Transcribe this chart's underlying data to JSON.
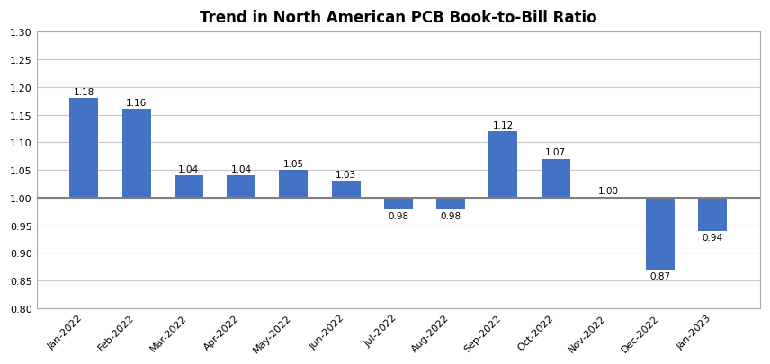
{
  "title": "Trend in North American PCB Book-to-Bill Ratio",
  "categories": [
    "Jan-2022",
    "Feb-2022",
    "Mar-2022",
    "Apr-2022",
    "May-2022",
    "Jun-2022",
    "Jul-2022",
    "Aug-2022",
    "Sep-2022",
    "Oct-2022",
    "Nov-2022",
    "Dec-2022",
    "Jan-2023"
  ],
  "values": [
    1.18,
    1.16,
    1.04,
    1.04,
    1.05,
    1.03,
    0.98,
    0.98,
    1.12,
    1.07,
    1.0,
    0.87,
    0.94
  ],
  "bar_color": "#4472C4",
  "baseline": 1.0,
  "ylim": [
    0.8,
    1.3
  ],
  "yticks": [
    0.8,
    0.85,
    0.9,
    0.95,
    1.0,
    1.05,
    1.1,
    1.15,
    1.2,
    1.25,
    1.3
  ],
  "background_color": "#ffffff",
  "plot_bg_color": "#f2f2f2",
  "title_fontsize": 12,
  "tick_fontsize": 8,
  "bar_label_fontsize": 7.5,
  "grid_color": "#c8c8c8",
  "baseline_color": "#808080",
  "spine_color": "#aaaaaa"
}
